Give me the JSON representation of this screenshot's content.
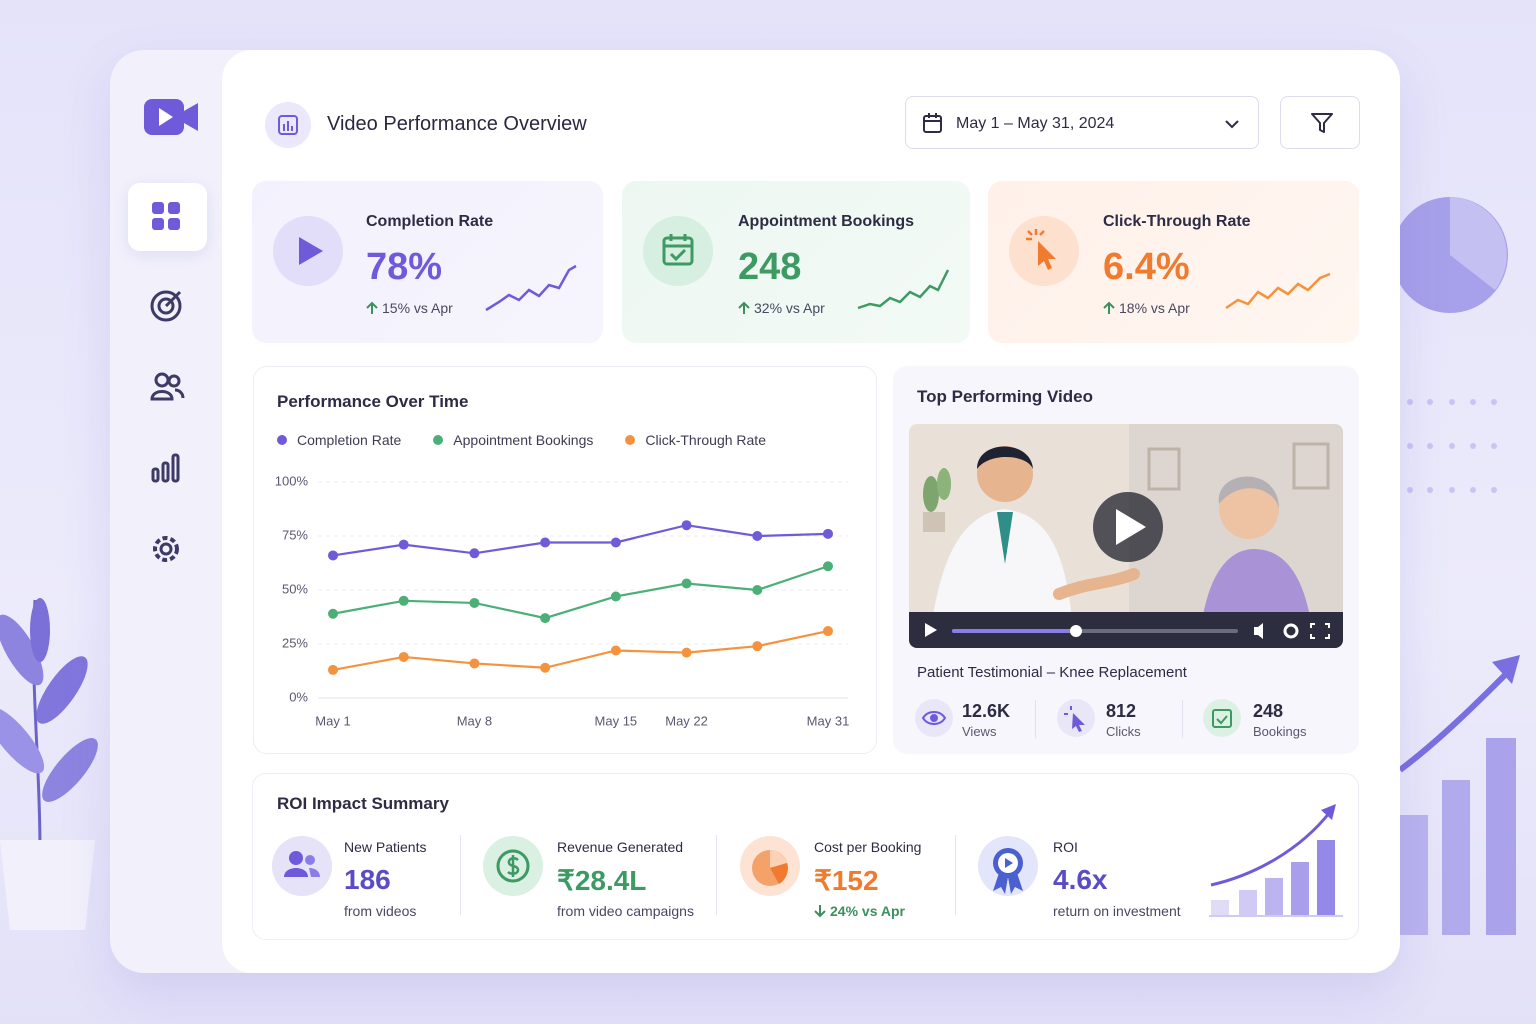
{
  "header": {
    "title": "Video Performance Overview",
    "date_range": "May 1 – May 31, 2024"
  },
  "kpis": [
    {
      "label": "Completion Rate",
      "value": "78%",
      "change": "15% vs Apr"
    },
    {
      "label": "Appointment Bookings",
      "value": "248",
      "change": "32% vs Apr"
    },
    {
      "label": "Click-Through Rate",
      "value": "6.4%",
      "change": "18% vs Apr"
    }
  ],
  "chart_data": {
    "type": "line",
    "title": "Performance Over Time",
    "categories": [
      "May 1",
      null,
      "May 8",
      null,
      "May 15",
      "May 22",
      null,
      "May 31"
    ],
    "series": [
      {
        "name": "Completion Rate",
        "color": "#6f5bd9",
        "values": [
          66,
          71,
          67,
          72,
          72,
          80,
          75,
          76
        ]
      },
      {
        "name": "Appointment Bookings",
        "color": "#4caf78",
        "values": [
          39,
          45,
          44,
          37,
          47,
          53,
          50,
          61
        ]
      },
      {
        "name": "Click-Through Rate",
        "color": "#f5923e",
        "values": [
          13,
          19,
          16,
          14,
          22,
          21,
          24,
          31
        ]
      }
    ],
    "ylim": [
      0,
      100
    ],
    "yticks": [
      {
        "value": 0,
        "label": "0%"
      },
      {
        "value": 25,
        "label": "25%"
      },
      {
        "value": 50,
        "label": "50%"
      },
      {
        "value": 75,
        "label": "75%"
      },
      {
        "value": 100,
        "label": "100%"
      }
    ],
    "grid": true
  },
  "top_video": {
    "title": "Top Performing Video",
    "video_title": "Patient Testimonial – Knee Replacement",
    "stats": [
      {
        "value": "12.6K",
        "label": "Views"
      },
      {
        "value": "812",
        "label": "Clicks"
      },
      {
        "value": "248",
        "label": "Bookings"
      }
    ]
  },
  "roi": {
    "title": "ROI Impact Summary",
    "items": [
      {
        "label": "New Patients",
        "value": "186",
        "sub": "from videos"
      },
      {
        "label": "Revenue Generated",
        "value": "₹28.4L",
        "sub": "from video campaigns"
      },
      {
        "label": "Cost per Booking",
        "value": "₹152",
        "sub": "24% vs Apr"
      },
      {
        "label": "ROI",
        "value": "4.6x",
        "sub": "return on investment"
      }
    ]
  }
}
